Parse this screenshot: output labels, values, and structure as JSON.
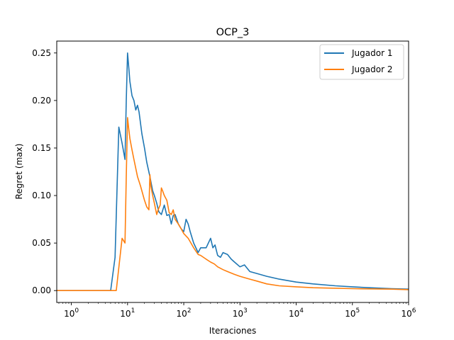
{
  "chart_data": {
    "type": "line",
    "title": "OCP_3",
    "xlabel": "Iteraciones",
    "ylabel": "Regret (max)",
    "xscale": "log",
    "xlim": [
      0.55,
      1000000
    ],
    "ylim": [
      -0.0125,
      0.2625
    ],
    "xticks": [
      {
        "value": 1,
        "base": "10",
        "exp": "0"
      },
      {
        "value": 10,
        "base": "10",
        "exp": "1"
      },
      {
        "value": 100,
        "base": "10",
        "exp": "2"
      },
      {
        "value": 1000,
        "base": "10",
        "exp": "3"
      },
      {
        "value": 10000,
        "base": "10",
        "exp": "4"
      },
      {
        "value": 100000,
        "base": "10",
        "exp": "5"
      },
      {
        "value": 1000000,
        "base": "10",
        "exp": "6"
      }
    ],
    "yticks": [
      {
        "value": 0.0,
        "label": "0.00"
      },
      {
        "value": 0.05,
        "label": "0.05"
      },
      {
        "value": 0.1,
        "label": "0.10"
      },
      {
        "value": 0.15,
        "label": "0.15"
      },
      {
        "value": 0.2,
        "label": "0.20"
      },
      {
        "value": 0.25,
        "label": "0.25"
      }
    ],
    "grid": false,
    "legend_position": "top-right",
    "series": [
      {
        "name": "Jugador 1",
        "color": "#1f77b4",
        "x": [
          0.55,
          5,
          6,
          7,
          8,
          9,
          9.5,
          10,
          10.5,
          11,
          12,
          13,
          14,
          15,
          16,
          18,
          20,
          22,
          25,
          28,
          30,
          33,
          36,
          40,
          45,
          50,
          55,
          60,
          65,
          70,
          80,
          90,
          100,
          110,
          120,
          130,
          150,
          180,
          200,
          250,
          300,
          330,
          360,
          400,
          450,
          500,
          600,
          700,
          800,
          1000,
          1200,
          1500,
          2000,
          3000,
          5000,
          10000,
          20000,
          50000,
          100000,
          200000,
          500000,
          1000000
        ],
        "y": [
          0.0,
          0.0,
          0.035,
          0.172,
          0.155,
          0.138,
          0.2,
          0.25,
          0.235,
          0.22,
          0.205,
          0.2,
          0.19,
          0.195,
          0.188,
          0.165,
          0.15,
          0.135,
          0.12,
          0.105,
          0.1,
          0.092,
          0.083,
          0.08,
          0.09,
          0.079,
          0.08,
          0.07,
          0.079,
          0.08,
          0.07,
          0.065,
          0.062,
          0.075,
          0.07,
          0.062,
          0.05,
          0.04,
          0.045,
          0.045,
          0.055,
          0.045,
          0.048,
          0.037,
          0.035,
          0.04,
          0.038,
          0.033,
          0.03,
          0.025,
          0.027,
          0.02,
          0.018,
          0.015,
          0.012,
          0.009,
          0.007,
          0.005,
          0.004,
          0.003,
          0.002,
          0.0015
        ]
      },
      {
        "name": "Jugador 2",
        "color": "#ff7f0e",
        "x": [
          0.55,
          6.3,
          8,
          9,
          9.5,
          10,
          10.5,
          11,
          12,
          13,
          15,
          17,
          20,
          22,
          24,
          25,
          26,
          28,
          30,
          33,
          35,
          38,
          40,
          42,
          45,
          50,
          55,
          60,
          65,
          70,
          80,
          90,
          100,
          120,
          150,
          180,
          200,
          250,
          300,
          350,
          400,
          500,
          600,
          800,
          1000,
          1500,
          2000,
          3000,
          5000,
          10000,
          20000,
          50000,
          100000,
          200000,
          500000,
          1000000
        ],
        "y": [
          0.0,
          0.0,
          0.055,
          0.05,
          0.12,
          0.182,
          0.17,
          0.16,
          0.148,
          0.138,
          0.12,
          0.11,
          0.095,
          0.088,
          0.085,
          0.122,
          0.11,
          0.1,
          0.092,
          0.08,
          0.085,
          0.09,
          0.108,
          0.105,
          0.1,
          0.095,
          0.082,
          0.08,
          0.085,
          0.075,
          0.07,
          0.065,
          0.06,
          0.055,
          0.045,
          0.038,
          0.037,
          0.033,
          0.03,
          0.028,
          0.025,
          0.022,
          0.02,
          0.017,
          0.015,
          0.012,
          0.01,
          0.007,
          0.005,
          0.004,
          0.003,
          0.0025,
          0.002,
          0.0018,
          0.0015,
          0.001
        ]
      }
    ]
  }
}
